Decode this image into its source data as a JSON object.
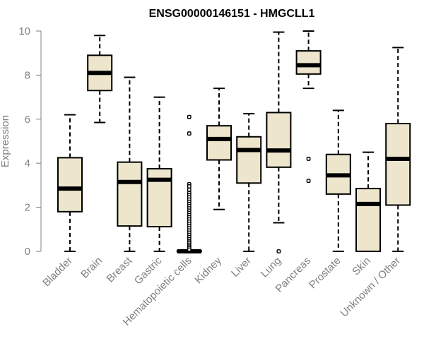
{
  "chart_data": {
    "type": "boxplot",
    "title": "ENSG00000146151 - HMGCLL1",
    "xlabel": "",
    "ylabel": "Expression",
    "ylim": [
      0,
      10
    ],
    "yticks": [
      0,
      2,
      4,
      6,
      8,
      10
    ],
    "colors": {
      "box_fill": "#ede6cd",
      "stroke": "#000000",
      "axis": "#808080",
      "text": "#808080"
    },
    "categories": [
      "Bladder",
      "Brain",
      "Breast",
      "Gastric",
      "Hematopoietic cells",
      "Kidney",
      "Liver",
      "Lung",
      "Pancreas",
      "Prostate",
      "Skin",
      "Unknown / Other"
    ],
    "boxes": [
      {
        "category": "Bladder",
        "min": 0.0,
        "q1": 1.8,
        "median": 2.85,
        "q3": 4.25,
        "max": 6.2,
        "outliers": []
      },
      {
        "category": "Brain",
        "min": 5.85,
        "q1": 7.3,
        "median": 8.1,
        "q3": 8.9,
        "max": 9.8,
        "outliers": []
      },
      {
        "category": "Breast",
        "min": 0.0,
        "q1": 1.15,
        "median": 3.15,
        "q3": 4.05,
        "max": 7.9,
        "outliers": []
      },
      {
        "category": "Gastric",
        "min": 0.0,
        "q1": 1.12,
        "median": 3.25,
        "q3": 3.75,
        "max": 7.0,
        "outliers": []
      },
      {
        "category": "Hematopoietic cells",
        "min": 0.0,
        "q1": 0.0,
        "median": 0.0,
        "q3": 0.02,
        "max": 0.05,
        "outliers": [
          6.1,
          5.35,
          3.05,
          2.95,
          2.8,
          2.65,
          2.55,
          2.45,
          2.35,
          2.25,
          2.15,
          2.05,
          1.95,
          1.85,
          1.75,
          1.65,
          1.55,
          1.45,
          1.35,
          1.25,
          1.15,
          1.05,
          0.95,
          0.85,
          0.75,
          0.65,
          0.55,
          0.45,
          0.38,
          0.3,
          0.22,
          0.15,
          0.08
        ]
      },
      {
        "category": "Kidney",
        "min": 1.9,
        "q1": 4.15,
        "median": 5.1,
        "q3": 5.7,
        "max": 7.4,
        "outliers": []
      },
      {
        "category": "Liver",
        "min": 0.0,
        "q1": 3.1,
        "median": 4.6,
        "q3": 5.2,
        "max": 6.25,
        "outliers": []
      },
      {
        "category": "Lung",
        "min": 1.3,
        "q1": 3.82,
        "median": 4.58,
        "q3": 6.3,
        "max": 9.95,
        "outliers": [
          0.0
        ]
      },
      {
        "category": "Pancreas",
        "min": 7.4,
        "q1": 8.05,
        "median": 8.45,
        "q3": 9.1,
        "max": 10.0,
        "outliers": [
          4.2,
          3.2
        ]
      },
      {
        "category": "Prostate",
        "min": 0.0,
        "q1": 2.6,
        "median": 3.45,
        "q3": 4.4,
        "max": 6.4,
        "outliers": []
      },
      {
        "category": "Skin",
        "min": 0.0,
        "q1": 0.0,
        "median": 2.15,
        "q3": 2.85,
        "max": 4.5,
        "outliers": []
      },
      {
        "category": "Unknown / Other",
        "min": 0.0,
        "q1": 2.1,
        "median": 4.2,
        "q3": 5.8,
        "max": 9.25,
        "outliers": []
      }
    ]
  }
}
